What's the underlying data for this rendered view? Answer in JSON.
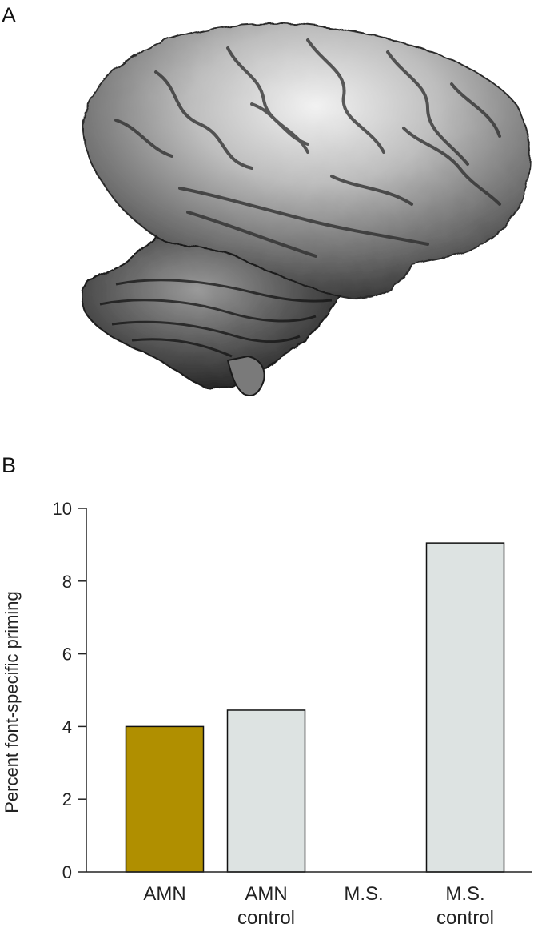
{
  "panels": {
    "a_label": "A",
    "b_label": "B"
  },
  "colors": {
    "amnesic": "#b08f00",
    "control": "#dde3e2",
    "brain_dark": "#1f1f1f",
    "brain_mid": "#7a7a7a",
    "brain_light": "#e6e6e6"
  },
  "chart_data": {
    "type": "bar",
    "categories": [
      [
        "AMN"
      ],
      [
        "AMN",
        "control"
      ],
      [
        "M.S."
      ],
      [
        "M.S.",
        "control"
      ]
    ],
    "values": [
      4.0,
      4.45,
      0.0,
      9.05
    ],
    "bar_colors": [
      "amnesic",
      "control",
      "control",
      "control"
    ],
    "ylabel": "Percent font-specific priming",
    "xlabel": "",
    "ylim": [
      0,
      10
    ],
    "yticks": [
      0,
      2,
      4,
      6,
      8,
      10
    ],
    "grid": false,
    "legend": false
  }
}
